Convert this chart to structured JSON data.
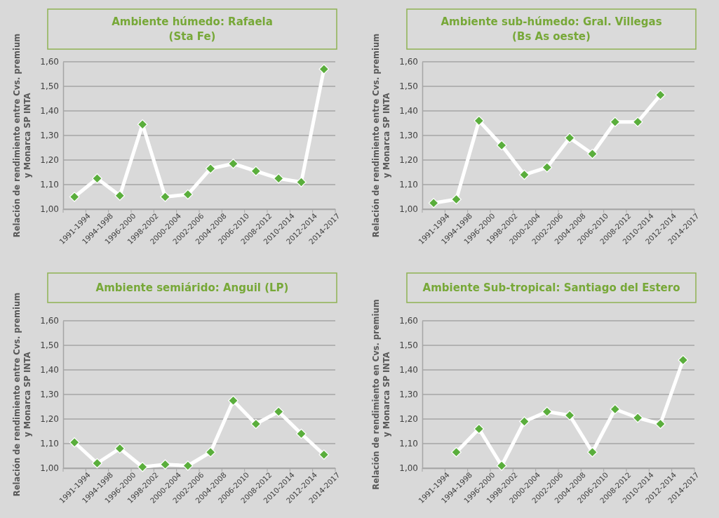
{
  "chart_data": [
    {
      "type": "line",
      "title": "Ambiente húmedo: Rafaela\n(Sta Fe)",
      "ylabel": "Relación de rendimiento entre Cvs. premium y Monarca SP INTA",
      "categories": [
        "1991-1994",
        "1994-1998",
        "1996-2000",
        "1998-2002",
        "2000-2004",
        "2002-2006",
        "2004-2008",
        "2006-2010",
        "2008-2012",
        "2010-2014",
        "2012-2014",
        "2014-2017"
      ],
      "series": [
        {
          "color": "#ffffff",
          "marker": "none",
          "values": [
            1.05,
            1.125,
            1.055,
            1.345,
            1.05,
            1.06,
            1.165,
            1.185,
            1.155,
            1.125,
            1.11,
            1.57
          ]
        },
        {
          "type": "scatter",
          "color": "#5aae3c",
          "marker": "diamond",
          "values": [
            1.05,
            1.125,
            1.055,
            1.345,
            1.05,
            1.06,
            1.165,
            1.185,
            1.155,
            1.125,
            1.11,
            1.57
          ]
        }
      ],
      "ylim": [
        1.0,
        1.6
      ],
      "yticks": [
        {
          "value": 1.0,
          "label": "1,00"
        },
        {
          "value": 1.1,
          "label": "1,10"
        },
        {
          "value": 1.2,
          "label": "1,20"
        },
        {
          "value": 1.3,
          "label": "1,30"
        },
        {
          "value": 1.4,
          "label": "1,40"
        },
        {
          "value": 1.5,
          "label": "1,50"
        },
        {
          "value": 1.6,
          "label": "1,60"
        }
      ],
      "grid": "y"
    },
    {
      "type": "line",
      "title": "Ambiente sub-húmedo: Gral. Villegas\n(Bs As oeste)",
      "ylabel": "Relación de rendimiento entre Cvs. premium y Monarca SP INTA",
      "categories": [
        "1991-1994",
        "1994-1998",
        "1996-2000",
        "1998-2002",
        "2000-2004",
        "2002-2006",
        "2004-2008",
        "2006-2010",
        "2008-2012",
        "2010-2014",
        "2012-2014",
        "2014-2017"
      ],
      "series": [
        {
          "color": "#ffffff",
          "marker": "none",
          "values": [
            1.025,
            1.04,
            1.36,
            1.26,
            1.14,
            1.17,
            1.29,
            1.225,
            1.355,
            1.355,
            1.465,
            null
          ]
        },
        {
          "type": "scatter",
          "color": "#5aae3c",
          "marker": "diamond",
          "values": [
            1.025,
            1.04,
            1.36,
            1.26,
            1.14,
            1.17,
            1.29,
            1.225,
            1.355,
            1.355,
            1.465,
            null
          ]
        }
      ],
      "ylim": [
        1.0,
        1.6
      ],
      "yticks": [
        {
          "value": 1.0,
          "label": "1,00"
        },
        {
          "value": 1.1,
          "label": "1,10"
        },
        {
          "value": 1.2,
          "label": "1,20"
        },
        {
          "value": 1.3,
          "label": "1,30"
        },
        {
          "value": 1.4,
          "label": "1,40"
        },
        {
          "value": 1.5,
          "label": "1,50"
        },
        {
          "value": 1.6,
          "label": "1,60"
        }
      ],
      "grid": "y"
    },
    {
      "type": "line",
      "title": "Ambiente semiárido: Anguil (LP)",
      "ylabel": "Relación de rendimiento entre Cvs. premium y Monarca SP INTA",
      "categories": [
        "1991-1994",
        "1994-1998",
        "1996-2000",
        "1998-2002",
        "2000-2004",
        "2002-2006",
        "2004-2008",
        "2006-2010",
        "2008-2012",
        "2010-2014",
        "2012-2014",
        "2014-2017"
      ],
      "series": [
        {
          "color": "#ffffff",
          "marker": "none",
          "values": [
            1.105,
            1.02,
            1.08,
            1.005,
            1.015,
            1.01,
            1.065,
            1.275,
            1.18,
            1.23,
            1.14,
            1.055
          ]
        },
        {
          "type": "scatter",
          "color": "#5aae3c",
          "marker": "diamond",
          "values": [
            1.105,
            1.02,
            1.08,
            1.005,
            1.015,
            1.01,
            1.065,
            1.275,
            1.18,
            1.23,
            1.14,
            1.055
          ]
        }
      ],
      "ylim": [
        1.0,
        1.6
      ],
      "yticks": [
        {
          "value": 1.0,
          "label": "1,00"
        },
        {
          "value": 1.1,
          "label": "1,10"
        },
        {
          "value": 1.2,
          "label": "1,20"
        },
        {
          "value": 1.3,
          "label": "1,30"
        },
        {
          "value": 1.4,
          "label": "1,40"
        },
        {
          "value": 1.5,
          "label": "1,50"
        },
        {
          "value": 1.6,
          "label": "1,60"
        }
      ],
      "grid": "y"
    },
    {
      "type": "line",
      "title": "Ambiente Sub-tropical: Santiago del Estero",
      "ylabel": "Relación de rendimiento en Cvs. premium y Monarca SP INTA",
      "categories": [
        "1991-1994",
        "1994-1998",
        "1996-2000",
        "1998-2002",
        "2000-2004",
        "2002-2006",
        "2004-2008",
        "2006-2010",
        "2008-2012",
        "2010-2014",
        "2012-2014",
        "2014-2017"
      ],
      "series": [
        {
          "color": "#ffffff",
          "marker": "none",
          "values": [
            null,
            1.065,
            1.16,
            1.01,
            1.19,
            1.23,
            1.215,
            1.065,
            1.24,
            1.205,
            1.18,
            1.44
          ]
        },
        {
          "type": "scatter",
          "color": "#5aae3c",
          "marker": "diamond",
          "values": [
            null,
            1.065,
            1.16,
            1.01,
            1.19,
            1.23,
            1.215,
            1.065,
            1.24,
            1.205,
            1.18,
            1.44
          ]
        }
      ],
      "ylim": [
        1.0,
        1.6
      ],
      "yticks": [
        {
          "value": 1.0,
          "label": "1,00"
        },
        {
          "value": 1.1,
          "label": "1,10"
        },
        {
          "value": 1.2,
          "label": "1,20"
        },
        {
          "value": 1.3,
          "label": "1,30"
        },
        {
          "value": 1.4,
          "label": "1,40"
        },
        {
          "value": 1.5,
          "label": "1,50"
        },
        {
          "value": 1.6,
          "label": "1,60"
        }
      ],
      "grid": "y"
    }
  ]
}
